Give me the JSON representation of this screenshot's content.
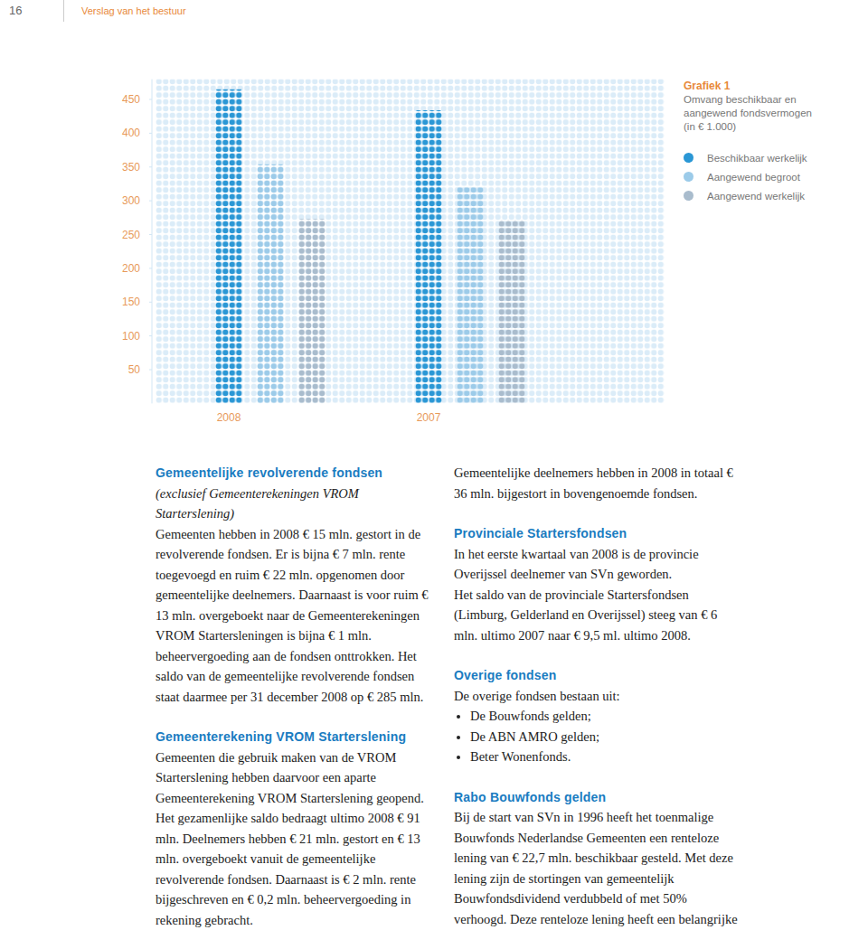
{
  "header": {
    "page_number": "16",
    "section": "Verslag van het bestuur"
  },
  "chart_data": {
    "type": "bar",
    "title": "Grafiek 1",
    "subtitle": "Omvang beschikbaar en aangewend fondsvermogen (in € 1.000)",
    "categories": [
      "2008",
      "2007"
    ],
    "series": [
      {
        "name": "Beschikbaar werkelijk",
        "color": "#2a97d5",
        "values": [
          465,
          434
        ]
      },
      {
        "name": "Aangewend begroot",
        "color": "#9ccbe9",
        "values": [
          354,
          320
        ]
      },
      {
        "name": "Aangewend werkelijk",
        "color": "#a9bccd",
        "values": [
          273,
          272
        ]
      }
    ],
    "ylim": [
      0,
      480
    ],
    "yticks": [
      50,
      100,
      150,
      200,
      250,
      300,
      350,
      400,
      450
    ],
    "grid": false,
    "legend": "top-right",
    "marker": "dot"
  },
  "columns": [
    {
      "blocks": [
        {
          "heading": "Gemeentelijke revolverende fondsen",
          "note": "(exclusief Gemeenterekeningen VROM Starterslening)",
          "paragraphs": [
            "Gemeenten hebben in 2008 € 15 mln. gestort in de revolverende fondsen. Er is bijna € 7 mln. rente toegevoegd en ruim € 22 mln. opgenomen door gemeentelijke deelnemers. Daarnaast is voor ruim € 13 mln. overgeboekt naar de Gemeenterekeningen VROM Startersleningen is bijna € 1 mln. beheervergoeding aan de fondsen onttrokken. Het saldo van de gemeentelijke revolverende fondsen staat daarmee per 31 december 2008 op € 285 mln."
          ]
        },
        {
          "heading": "Gemeenterekening VROM Starterslening",
          "paragraphs": [
            "Gemeenten die gebruik maken van de VROM Starterslening hebben daarvoor een aparte Gemeenterekening VROM Starterslening geopend. Het gezamenlijke saldo bedraagt ultimo 2008 € 91 mln. Deelnemers hebben € 21 mln. gestort en € 13 mln. overgeboekt vanuit de gemeentelijke revolverende fondsen. Daarnaast is € 2 mln. rente bijgeschreven en € 0,2 mln. beheervergoeding in rekening gebracht."
          ]
        }
      ]
    },
    {
      "blocks": [
        {
          "paragraphs": [
            "Gemeentelijke deelnemers hebben in 2008 in totaal € 36 mln. bijgestort in bovengenoemde fondsen."
          ]
        },
        {
          "heading": "Provinciale Startersfondsen",
          "paragraphs": [
            "In het eerste kwartaal van 2008 is de provincie Overijssel deelnemer van SVn geworden.",
            "Het saldo van de provinciale Startersfondsen (Limburg, Gelderland en Overijssel) steeg van € 6 mln. ultimo 2007 naar € 9,5 ml. ultimo 2008."
          ]
        },
        {
          "heading": "Overige fondsen",
          "paragraphs": [
            "De overige fondsen bestaan uit:"
          ],
          "items": [
            "De Bouwfonds gelden;",
            "De ABN AMRO gelden;",
            "Beter Wonenfonds."
          ]
        },
        {
          "heading": "Rabo Bouwfonds gelden",
          "paragraphs": [
            "Bij de start van SVn in 1996 heeft het toenmalige Bouwfonds Nederlandse Gemeenten een renteloze lening van € 22,7 mln. beschikbaar gesteld. Met deze lening zijn de stortingen van gemeentelijk Bouwfondsdividend verdubbeld of met 50% verhoogd. Deze renteloze lening heeft een belangrijke"
          ]
        }
      ]
    }
  ]
}
